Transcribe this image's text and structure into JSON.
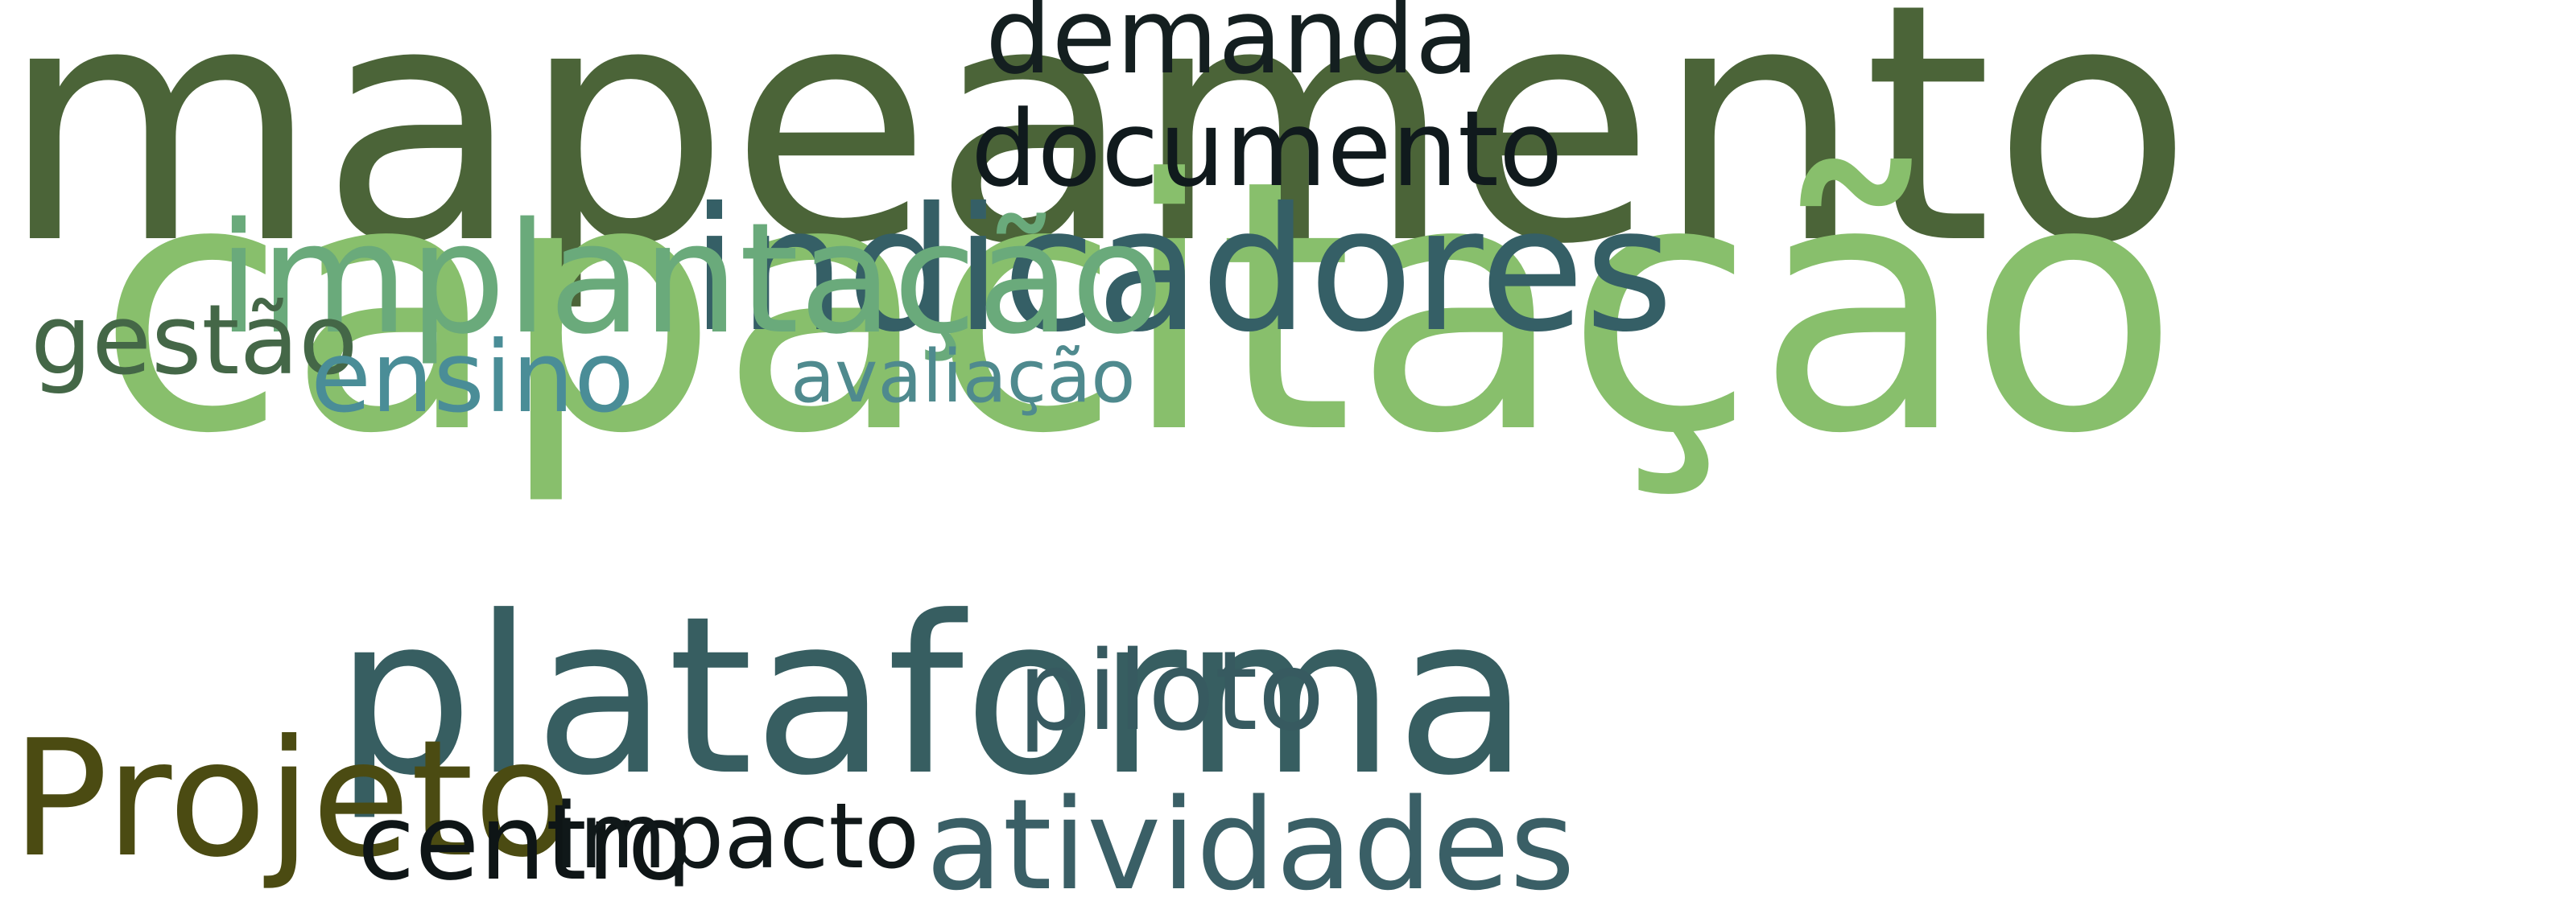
{
  "words": [
    {
      "text": "mapeamento",
      "color": "#4b6438"
    },
    {
      "text": "capacitação",
      "color": "#88bf6c"
    },
    {
      "text": "plataforma",
      "color": "#375e61"
    },
    {
      "text": "indicadores",
      "color": "#355f66"
    },
    {
      "text": "implantação",
      "color": "#6aaa7b"
    },
    {
      "text": "demanda",
      "color": "#141f20"
    },
    {
      "text": "documento",
      "color": "#101a1d"
    },
    {
      "text": "gestão",
      "color": "#446747"
    },
    {
      "text": "ensino",
      "color": "#4a8d97"
    },
    {
      "text": "avaliação",
      "color": "#4f8a8e"
    },
    {
      "text": "Projeto",
      "color": "#4b4b12"
    },
    {
      "text": "piloto",
      "color": "#375a60"
    },
    {
      "text": "centro",
      "color": "#0e1516"
    },
    {
      "text": "impacto",
      "color": "#101819"
    },
    {
      "text": "atividades",
      "color": "#3a5f66"
    }
  ]
}
